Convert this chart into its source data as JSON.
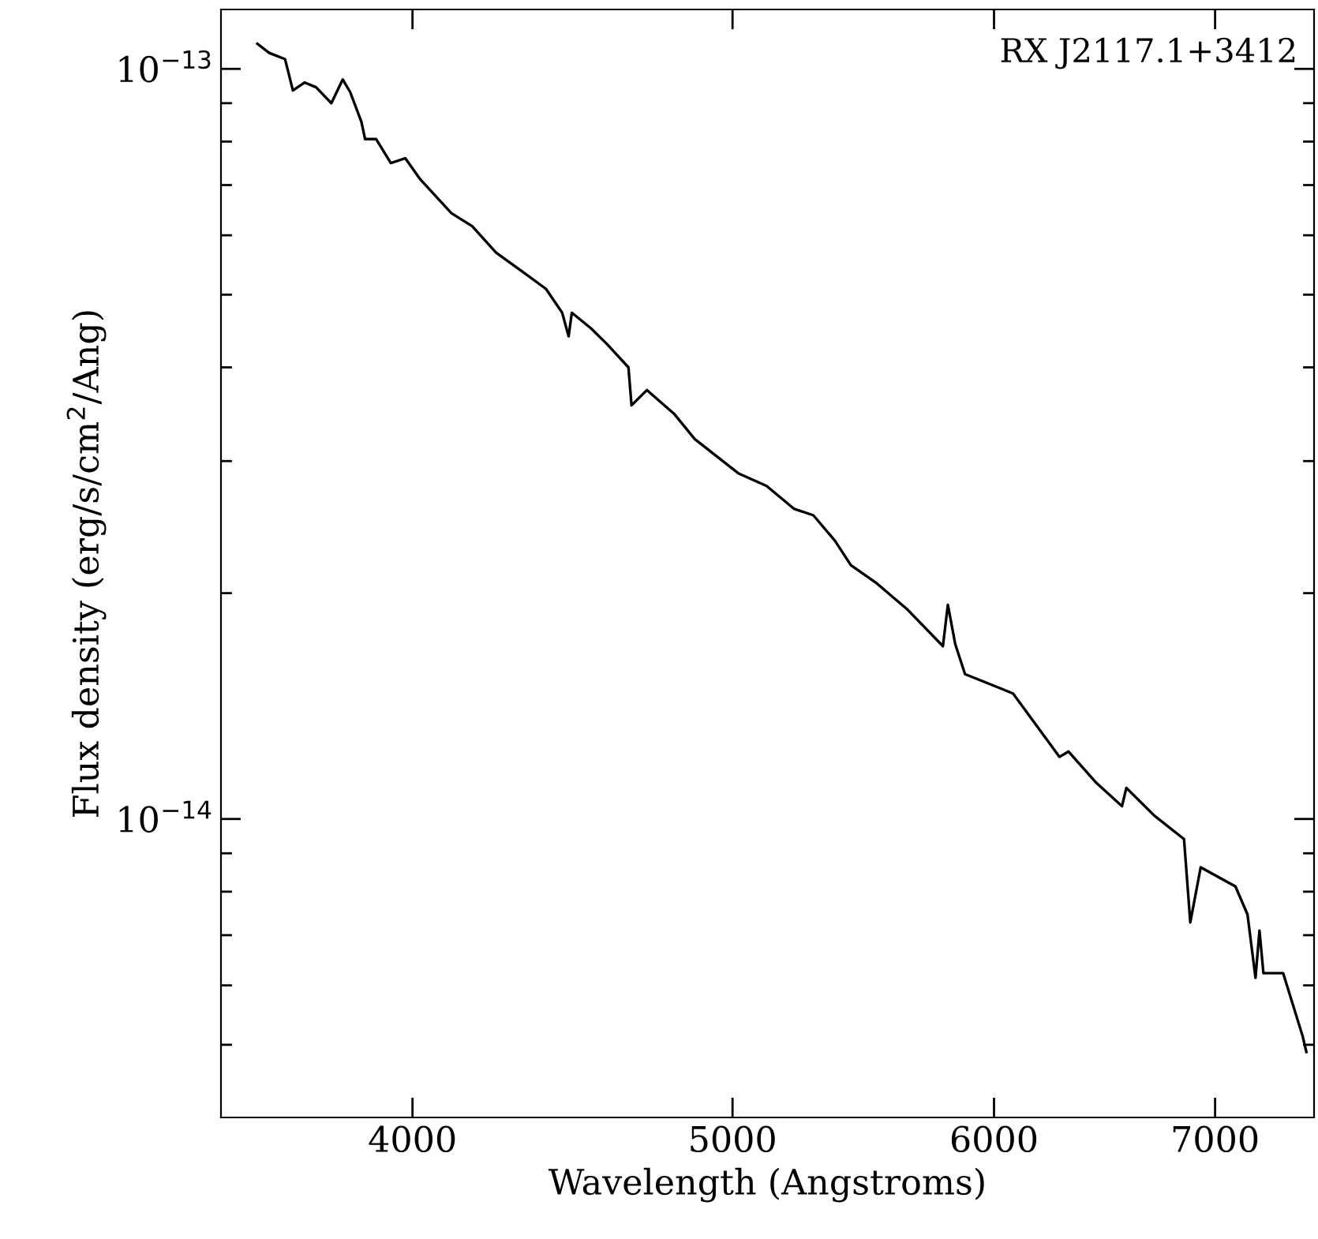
{
  "chart_data": {
    "type": "line",
    "log": "xy",
    "xlabel": "Wavelength (Angstroms)",
    "ylabel": "Flux density (erg/s/cm$^{2}$/Ang)",
    "annotations": [
      "RX J2117.1+3412"
    ],
    "xlim": [
      3500,
      7500
    ],
    "ylim": [
      4e-15,
      1.2e-13
    ],
    "xticks": [
      4000,
      5000,
      6000,
      7000
    ],
    "yticks": [
      {
        "value": 5e-15,
        "label": null
      },
      {
        "value": 6e-15,
        "label": null
      },
      {
        "value": 7e-15,
        "label": null
      },
      {
        "value": 8e-15,
        "label": null
      },
      {
        "value": 9e-15,
        "label": null
      },
      {
        "value": 1e-14,
        "label": "10$^{−14}$"
      },
      {
        "value": 2e-14,
        "label": null
      },
      {
        "value": 3e-14,
        "label": null
      },
      {
        "value": 4e-14,
        "label": null
      },
      {
        "value": 5e-14,
        "label": null
      },
      {
        "value": 6e-14,
        "label": null
      },
      {
        "value": 7e-14,
        "label": null
      },
      {
        "value": 8e-14,
        "label": null
      },
      {
        "value": 9e-14,
        "label": null
      },
      {
        "value": 1e-13,
        "label": "10$^{−13}$"
      }
    ],
    "grid": false,
    "legend": false,
    "marker": "none",
    "line_style": "solid",
    "series": [
      {
        "color": "#000000",
        "x": [
          3590,
          3620,
          3660,
          3680,
          3710,
          3740,
          3780,
          3810,
          3830,
          3860,
          3870,
          3900,
          3940,
          3980,
          4020,
          4110,
          4170,
          4240,
          4320,
          4390,
          4440,
          4460,
          4470,
          4530,
          4580,
          4650,
          4660,
          4710,
          4800,
          4870,
          5020,
          5120,
          5220,
          5290,
          5370,
          5430,
          5530,
          5650,
          5790,
          5810,
          5840,
          5880,
          6080,
          6280,
          6320,
          6440,
          6560,
          6580,
          6710,
          6850,
          6880,
          6930,
          7100,
          7160,
          7200,
          7220,
          7240,
          7340,
          7440,
          7460
        ],
        "values": [
          1.08e-13,
          1.05e-13,
          1.03e-13,
          9.36e-14,
          9.59e-14,
          9.45e-14,
          9e-14,
          9.68e-14,
          9.31e-14,
          8.5e-14,
          8.06e-14,
          8.06e-14,
          7.49e-14,
          7.6e-14,
          7.14e-14,
          6.42e-14,
          6.17e-14,
          5.69e-14,
          5.36e-14,
          5.09e-14,
          4.73e-14,
          4.4e-14,
          4.73e-14,
          4.51e-14,
          4.3e-14,
          4e-14,
          3.56e-14,
          3.73e-14,
          3.47e-14,
          3.21e-14,
          2.89e-14,
          2.78e-14,
          2.59e-14,
          2.54e-14,
          2.35e-14,
          2.18e-14,
          2.06e-14,
          1.9e-14,
          1.7e-14,
          1.93e-14,
          1.71e-14,
          1.56e-14,
          1.47e-14,
          1.21e-14,
          1.23e-14,
          1.12e-14,
          1.04e-14,
          1.1e-14,
          1.01e-14,
          9.4e-15,
          7.28e-15,
          8.62e-15,
          8.13e-15,
          7.46e-15,
          6.14e-15,
          7.1e-15,
          6.23e-15,
          6.23e-15,
          5.14e-15,
          4.89e-15
        ]
      }
    ]
  }
}
